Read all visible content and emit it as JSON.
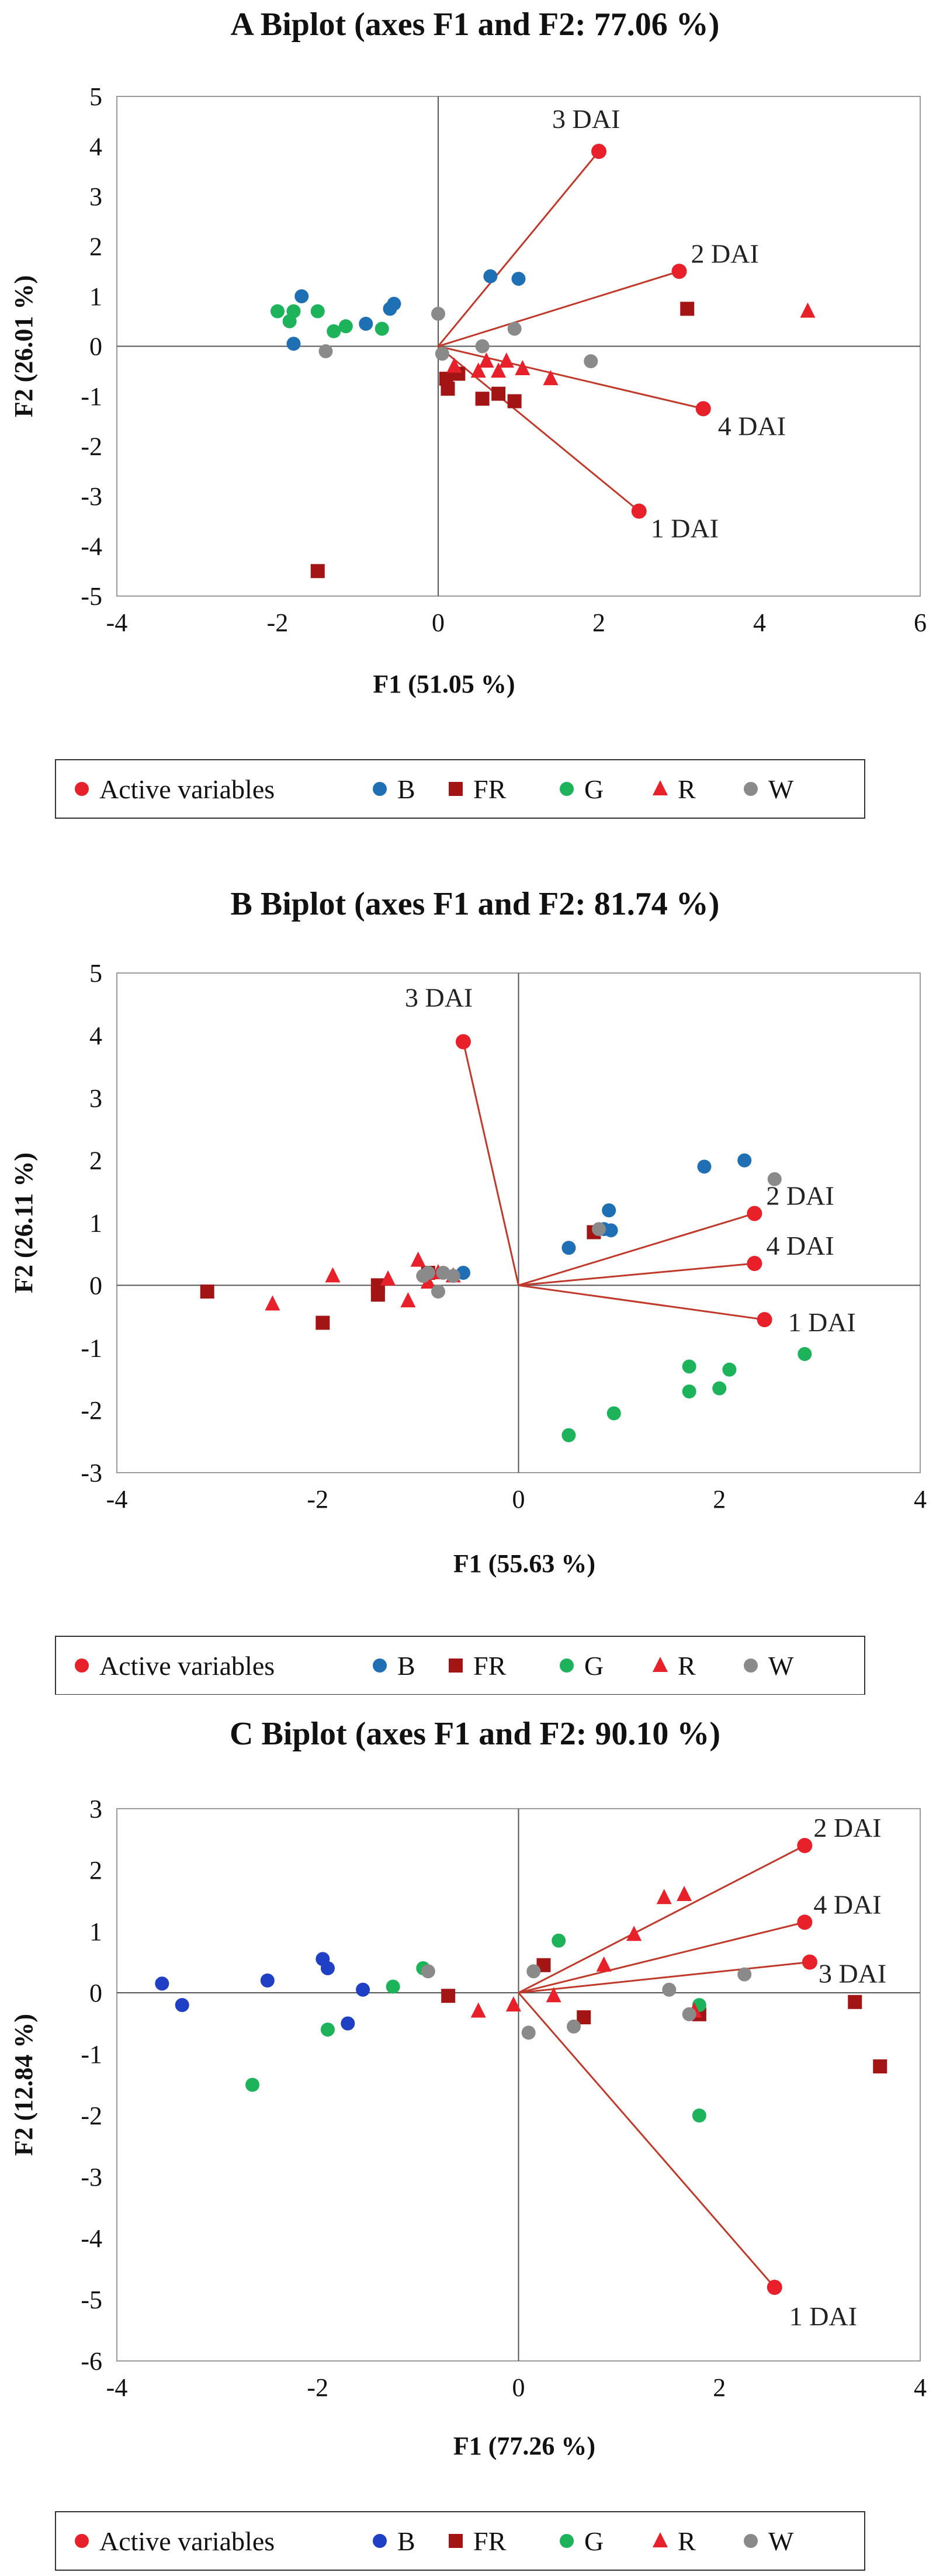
{
  "colors": {
    "active": "#e8202a",
    "vector": "#c0392b",
    "B": "#1f6fb4",
    "B_c": "#1f3fc4",
    "FR": "#a31515",
    "G": "#1db35a",
    "R": "#e8202a",
    "W": "#8a8a8a",
    "axis": "#555555",
    "frame": "#9a9a9a"
  },
  "legend": {
    "items": [
      "Active variables",
      "B",
      "FR",
      "G",
      "R",
      "W"
    ]
  },
  "chart_data": [
    {
      "id": "A",
      "type": "scatter",
      "title": "A Biplot (axes F1 and F2: 77.06 %)",
      "xlabel": "F1 (51.05 %)",
      "ylabel": "F2 (26.01 %)",
      "xlim": [
        -4,
        6
      ],
      "ylim": [
        -5,
        5
      ],
      "xticks": [
        -4,
        -2,
        0,
        2,
        4,
        6
      ],
      "yticks": [
        -5,
        -4,
        -3,
        -2,
        -1,
        0,
        1,
        2,
        3,
        4,
        5
      ],
      "vectors": [
        {
          "label": "1 DAI",
          "x": 2.5,
          "y": -3.3
        },
        {
          "label": "2 DAI",
          "x": 3.0,
          "y": 1.5
        },
        {
          "label": "3 DAI",
          "x": 2.0,
          "y": 3.9
        },
        {
          "label": "4 DAI",
          "x": 3.3,
          "y": -1.25
        }
      ],
      "series": [
        {
          "name": "B",
          "marker": "circle",
          "points": [
            [
              -1.8,
              0.05
            ],
            [
              -1.7,
              1.0
            ],
            [
              -0.9,
              0.45
            ],
            [
              -0.6,
              0.75
            ],
            [
              -0.55,
              0.85
            ],
            [
              0.65,
              1.4
            ],
            [
              1.0,
              1.35
            ]
          ]
        },
        {
          "name": "FR",
          "marker": "square",
          "points": [
            [
              -1.5,
              -4.5
            ],
            [
              0.1,
              -0.65
            ],
            [
              0.12,
              -0.85
            ],
            [
              0.25,
              -0.55
            ],
            [
              0.55,
              -1.05
            ],
            [
              0.75,
              -0.95
            ],
            [
              0.95,
              -1.1
            ],
            [
              3.1,
              0.75
            ]
          ]
        },
        {
          "name": "G",
          "marker": "circle",
          "points": [
            [
              -2.0,
              0.7
            ],
            [
              -1.85,
              0.5
            ],
            [
              -1.8,
              0.7
            ],
            [
              -1.5,
              0.7
            ],
            [
              -1.3,
              0.3
            ],
            [
              -1.15,
              0.4
            ],
            [
              -0.7,
              0.35
            ]
          ]
        },
        {
          "name": "R",
          "marker": "triangle",
          "points": [
            [
              0.2,
              -0.4
            ],
            [
              0.5,
              -0.5
            ],
            [
              0.6,
              -0.3
            ],
            [
              0.75,
              -0.5
            ],
            [
              0.85,
              -0.3
            ],
            [
              1.05,
              -0.45
            ],
            [
              1.4,
              -0.65
            ],
            [
              4.6,
              0.7
            ]
          ]
        },
        {
          "name": "W",
          "marker": "circle",
          "points": [
            [
              -1.4,
              -0.1
            ],
            [
              0.0,
              0.65
            ],
            [
              0.05,
              -0.15
            ],
            [
              0.55,
              0.0
            ],
            [
              0.95,
              0.35
            ],
            [
              1.9,
              -0.3
            ]
          ]
        }
      ]
    },
    {
      "id": "B",
      "type": "scatter",
      "title": "B Biplot (axes F1 and F2: 81.74 %)",
      "xlabel": "F1 (55.63 %)",
      "ylabel": "F2 (26.11 %)",
      "xlim": [
        -4,
        4
      ],
      "ylim": [
        -3,
        5
      ],
      "xticks": [
        -4,
        -2,
        0,
        2,
        4
      ],
      "yticks": [
        -3,
        -2,
        -1,
        0,
        1,
        2,
        3,
        4,
        5
      ],
      "vectors": [
        {
          "label": "1 DAI",
          "x": 2.45,
          "y": -0.55
        },
        {
          "label": "2 DAI",
          "x": 2.35,
          "y": 1.15
        },
        {
          "label": "3 DAI",
          "x": -0.55,
          "y": 3.9
        },
        {
          "label": "4 DAI",
          "x": 2.35,
          "y": 0.35
        }
      ],
      "series": [
        {
          "name": "B",
          "marker": "circle",
          "points": [
            [
              -0.55,
              0.2
            ],
            [
              0.5,
              0.6
            ],
            [
              0.85,
              0.9
            ],
            [
              0.9,
              1.2
            ],
            [
              0.92,
              0.88
            ],
            [
              1.85,
              1.9
            ],
            [
              2.25,
              2.0
            ]
          ]
        },
        {
          "name": "FR",
          "marker": "square",
          "points": [
            [
              -3.1,
              -0.1
            ],
            [
              -1.95,
              -0.6
            ],
            [
              -1.4,
              0.0
            ],
            [
              -1.4,
              -0.15
            ],
            [
              -0.9,
              0.2
            ],
            [
              0.75,
              0.85
            ]
          ]
        },
        {
          "name": "G",
          "marker": "circle",
          "points": [
            [
              0.5,
              -2.4
            ],
            [
              0.95,
              -2.05
            ],
            [
              1.7,
              -1.3
            ],
            [
              1.7,
              -1.7
            ],
            [
              2.0,
              -1.65
            ],
            [
              2.1,
              -1.35
            ],
            [
              2.85,
              -1.1
            ]
          ]
        },
        {
          "name": "R",
          "marker": "triangle",
          "points": [
            [
              -2.45,
              -0.3
            ],
            [
              -1.85,
              0.15
            ],
            [
              -1.3,
              0.1
            ],
            [
              -1.1,
              -0.25
            ],
            [
              -1.0,
              0.4
            ],
            [
              -0.9,
              0.05
            ],
            [
              -0.8,
              0.2
            ],
            [
              -0.65,
              0.15
            ]
          ]
        },
        {
          "name": "W",
          "marker": "circle",
          "points": [
            [
              -0.95,
              0.15
            ],
            [
              -0.9,
              0.2
            ],
            [
              -0.8,
              -0.1
            ],
            [
              -0.75,
              0.2
            ],
            [
              -0.65,
              0.15
            ],
            [
              0.8,
              0.9
            ],
            [
              2.55,
              1.7
            ]
          ]
        }
      ]
    },
    {
      "id": "C",
      "type": "scatter",
      "title": "C Biplot (axes F1 and F2: 90.10 %)",
      "xlabel": "F1 (77.26 %)",
      "ylabel": "F2 (12.84 %)",
      "xlim": [
        -4,
        4
      ],
      "ylim": [
        -6,
        3
      ],
      "xticks": [
        -4,
        -2,
        0,
        2,
        4
      ],
      "yticks": [
        -6,
        -5,
        -4,
        -3,
        -2,
        -1,
        0,
        1,
        2,
        3
      ],
      "vectors": [
        {
          "label": "1 DAI",
          "x": 2.55,
          "y": -4.8
        },
        {
          "label": "2 DAI",
          "x": 2.85,
          "y": 2.4
        },
        {
          "label": "3 DAI",
          "x": 2.9,
          "y": 0.5
        },
        {
          "label": "4 DAI",
          "x": 2.85,
          "y": 1.15
        }
      ],
      "series": [
        {
          "name": "B",
          "marker": "circle",
          "points": [
            [
              -3.55,
              0.15
            ],
            [
              -3.35,
              -0.2
            ],
            [
              -2.5,
              0.2
            ],
            [
              -1.95,
              0.55
            ],
            [
              -1.9,
              0.4
            ],
            [
              -1.7,
              -0.5
            ],
            [
              -1.55,
              0.05
            ]
          ]
        },
        {
          "name": "FR",
          "marker": "square",
          "points": [
            [
              -0.7,
              -0.05
            ],
            [
              0.25,
              0.45
            ],
            [
              0.65,
              -0.4
            ],
            [
              1.8,
              -0.35
            ],
            [
              3.35,
              -0.15
            ],
            [
              3.6,
              -1.2
            ]
          ]
        },
        {
          "name": "G",
          "marker": "circle",
          "points": [
            [
              -2.65,
              -1.5
            ],
            [
              -1.9,
              -0.6
            ],
            [
              -1.25,
              0.1
            ],
            [
              -0.95,
              0.4
            ],
            [
              0.4,
              0.85
            ],
            [
              1.8,
              -0.2
            ],
            [
              1.8,
              -2.0
            ]
          ]
        },
        {
          "name": "R",
          "marker": "triangle",
          "points": [
            [
              -0.4,
              -0.3
            ],
            [
              -0.05,
              -0.2
            ],
            [
              0.35,
              -0.05
            ],
            [
              0.85,
              0.45
            ],
            [
              1.15,
              0.95
            ],
            [
              1.45,
              1.55
            ],
            [
              1.65,
              1.6
            ],
            [
              1.75,
              -0.3
            ]
          ]
        },
        {
          "name": "W",
          "marker": "circle",
          "points": [
            [
              -0.9,
              0.35
            ],
            [
              0.1,
              -0.65
            ],
            [
              0.15,
              0.35
            ],
            [
              0.55,
              -0.55
            ],
            [
              1.5,
              0.05
            ],
            [
              1.7,
              -0.35
            ],
            [
              2.25,
              0.3
            ]
          ]
        }
      ]
    }
  ]
}
